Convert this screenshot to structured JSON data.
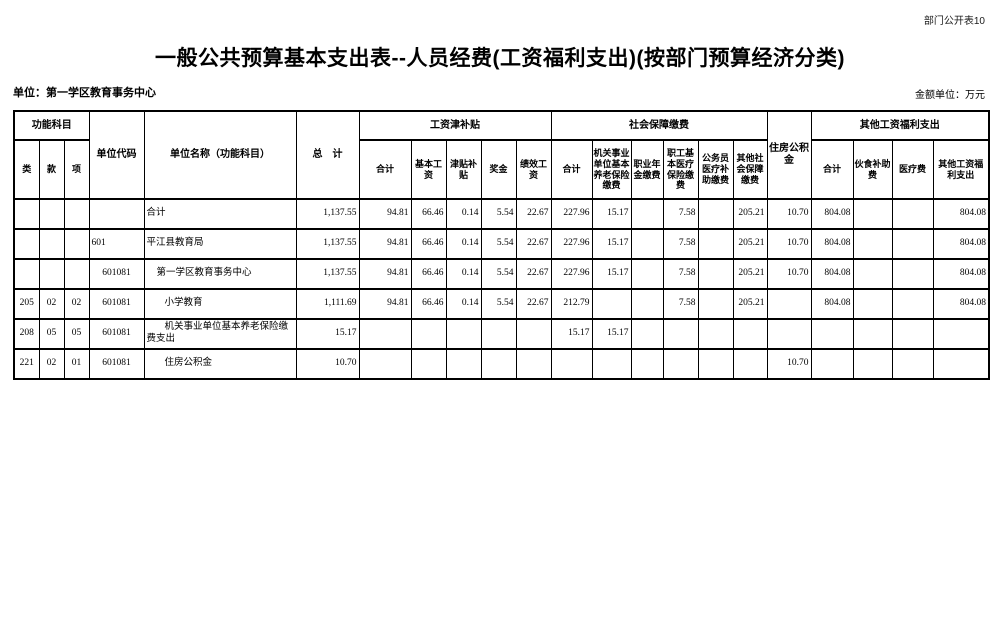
{
  "page": {
    "corner_note": "部门公开表10",
    "title": "一般公共预算基本支出表--人员经费(工资福利支出)(按部门预算经济分类)",
    "unit_label": "单位：第一学区教育事务中心",
    "amount_unit_label": "金额单位：万元"
  },
  "table": {
    "header": {
      "func_group": "功能科目",
      "func_cols": [
        "类",
        "款",
        "项"
      ],
      "unit_code": "单位代码",
      "unit_name": "单位名称（功能科目）",
      "grand_total": "总　计",
      "salary_group": "工资津补贴",
      "salary_cols": [
        "合计",
        "基本工资",
        "津贴补贴",
        "奖金",
        "绩效工资"
      ],
      "social_group": "社会保障缴费",
      "social_cols": [
        "合计",
        "机关事业单位基本养老保险缴费",
        "职业年金缴费",
        "职工基本医疗保险缴费",
        "公务员医疗补助缴费",
        "其他社会保障缴费"
      ],
      "housing_fund": "住房公积金",
      "other_group": "其他工资福利支出",
      "other_cols": [
        "合计",
        "伙食补助费",
        "医疗费",
        "其他工资福利支出"
      ]
    },
    "rows": [
      {
        "lei": "",
        "kuan": "",
        "xiang": "",
        "code": "",
        "name": "合计",
        "indent": 0,
        "values": [
          "1,137.55",
          "94.81",
          "66.46",
          "0.14",
          "5.54",
          "22.67",
          "227.96",
          "15.17",
          "",
          "7.58",
          "",
          "205.21",
          "10.70",
          "804.08",
          "",
          "",
          "804.08"
        ]
      },
      {
        "lei": "",
        "kuan": "",
        "xiang": "",
        "code": "601",
        "name": "平江县教育局",
        "indent": 0,
        "values": [
          "1,137.55",
          "94.81",
          "66.46",
          "0.14",
          "5.54",
          "22.67",
          "227.96",
          "15.17",
          "",
          "7.58",
          "",
          "205.21",
          "10.70",
          "804.08",
          "",
          "",
          "804.08"
        ]
      },
      {
        "lei": "",
        "kuan": "",
        "xiang": "",
        "code": "601081",
        "name": "第一学区教育事务中心",
        "indent": 1,
        "values": [
          "1,137.55",
          "94.81",
          "66.46",
          "0.14",
          "5.54",
          "22.67",
          "227.96",
          "15.17",
          "",
          "7.58",
          "",
          "205.21",
          "10.70",
          "804.08",
          "",
          "",
          "804.08"
        ]
      },
      {
        "lei": "205",
        "kuan": "02",
        "xiang": "02",
        "code": "601081",
        "name": "小学教育",
        "indent": 2,
        "values": [
          "1,111.69",
          "94.81",
          "66.46",
          "0.14",
          "5.54",
          "22.67",
          "212.79",
          "",
          "",
          "7.58",
          "",
          "205.21",
          "",
          "804.08",
          "",
          "",
          "804.08"
        ]
      },
      {
        "lei": "208",
        "kuan": "05",
        "xiang": "05",
        "code": "601081",
        "name": "机关事业单位基本养老保险缴费支出",
        "indent": 2,
        "values": [
          "15.17",
          "",
          "",
          "",
          "",
          "",
          "15.17",
          "15.17",
          "",
          "",
          "",
          "",
          "",
          "",
          "",
          "",
          ""
        ]
      },
      {
        "lei": "221",
        "kuan": "02",
        "xiang": "01",
        "code": "601081",
        "name": "住房公积金",
        "indent": 2,
        "values": [
          "10.70",
          "",
          "",
          "",
          "",
          "",
          "",
          "",
          "",
          "",
          "",
          "",
          "10.70",
          "",
          "",
          "",
          ""
        ]
      }
    ]
  }
}
